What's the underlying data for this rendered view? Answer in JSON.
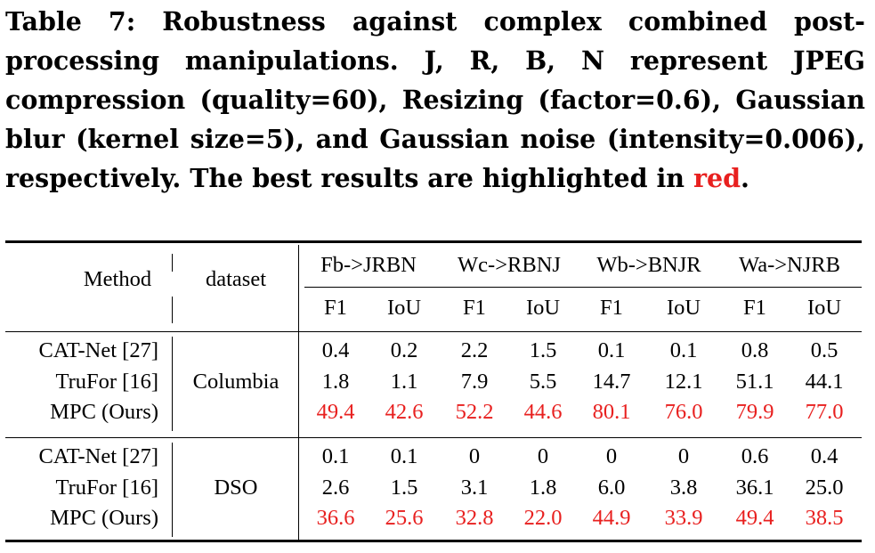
{
  "caption": {
    "text_before_red": "Table 7: Robustness against complex combined post-processing manipulations. J, R, B, N represent JPEG compression (quality=60), Resizing (factor=0.6), Gaussian blur (kernel size=5), and Gaussian noise (intensity=0.006), respectively. The best results are highlighted in ",
    "red_word": "red",
    "period": "."
  },
  "table": {
    "header": {
      "method": "Method",
      "dataset": "dataset",
      "groups": [
        "Fb->JRBN",
        "Wc->RBNJ",
        "Wb->BNJR",
        "Wa->NJRB"
      ],
      "subcols": [
        "F1",
        "IoU",
        "F1",
        "IoU",
        "F1",
        "IoU",
        "F1",
        "IoU"
      ]
    },
    "sections": [
      {
        "dataset": "Columbia",
        "rows": [
          {
            "method": "CAT-Net [27]",
            "values": [
              "0.4",
              "0.2",
              "2.2",
              "1.5",
              "0.1",
              "0.1",
              "0.8",
              "0.5"
            ],
            "best": false
          },
          {
            "method": "TruFor [16]",
            "values": [
              "1.8",
              "1.1",
              "7.9",
              "5.5",
              "14.7",
              "12.1",
              "51.1",
              "44.1"
            ],
            "best": false
          },
          {
            "method": "MPC (Ours)",
            "values": [
              "49.4",
              "42.6",
              "52.2",
              "44.6",
              "80.1",
              "76.0",
              "79.9",
              "77.0"
            ],
            "best": true
          }
        ]
      },
      {
        "dataset": "DSO",
        "rows": [
          {
            "method": "CAT-Net [27]",
            "values": [
              "0.1",
              "0.1",
              "0",
              "0",
              "0",
              "0",
              "0.6",
              "0.4"
            ],
            "best": false
          },
          {
            "method": "TruFor [16]",
            "values": [
              "2.6",
              "1.5",
              "3.1",
              "1.8",
              "6.0",
              "3.8",
              "36.1",
              "25.0"
            ],
            "best": false
          },
          {
            "method": "MPC (Ours)",
            "values": [
              "36.6",
              "25.6",
              "32.8",
              "22.0",
              "44.9",
              "33.9",
              "49.4",
              "38.5"
            ],
            "best": true
          }
        ]
      }
    ],
    "highlight_color": "#e8201f"
  }
}
